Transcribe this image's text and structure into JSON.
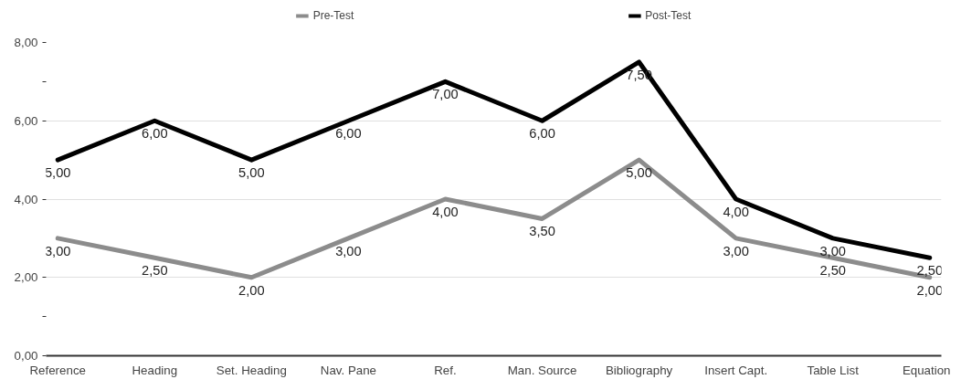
{
  "chart_data": {
    "type": "line",
    "categories": [
      "Reference",
      "Heading",
      "Set. Heading",
      "Nav. Pane",
      "Ref.",
      "Man. Source",
      "Bibliography",
      "Insert Capt.",
      "Table List",
      "Equation"
    ],
    "series": [
      {
        "name": "Pre-Test",
        "color": "#8c8c8c",
        "values": [
          3,
          2.5,
          2,
          3,
          4,
          3.5,
          5,
          3,
          2.5,
          2
        ],
        "value_labels": [
          "3,00",
          "2,50",
          "2,00",
          "3,00",
          "4,00",
          "3,50",
          "5,00",
          "3,00",
          "2,50",
          "2,00"
        ]
      },
      {
        "name": "Post-Test",
        "color": "#000000",
        "values": [
          5,
          6,
          5,
          6,
          7,
          6,
          7.5,
          4,
          3,
          2.5
        ],
        "value_labels": [
          "5,00",
          "6,00",
          "5,00",
          "6,00",
          "7,00",
          "6,00",
          "7,50",
          "4,00",
          "3,00",
          "2,50"
        ]
      }
    ],
    "ylim": [
      0,
      8
    ],
    "yticks": [
      {
        "value": 0,
        "label": "0,00"
      },
      {
        "value": 1,
        "label": null
      },
      {
        "value": 2,
        "label": "2,00"
      },
      {
        "value": 4,
        "label": "4,00"
      },
      {
        "value": 6,
        "label": "6,00"
      },
      {
        "value": 7,
        "label": null
      },
      {
        "value": 8,
        "label": "8,00"
      }
    ],
    "grid": "y",
    "legend": "top",
    "marker": "none",
    "line_style": "solid"
  }
}
